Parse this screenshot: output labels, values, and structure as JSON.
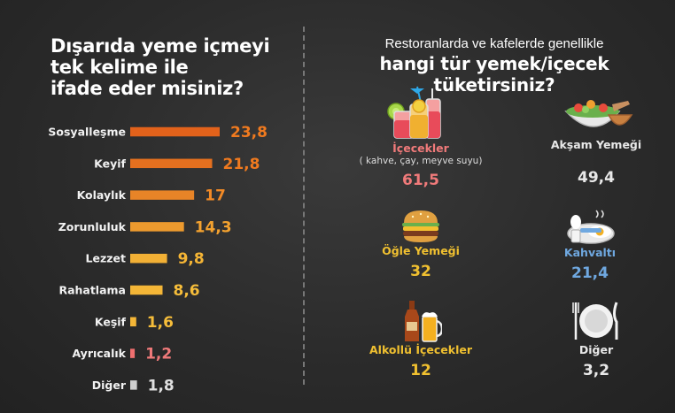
{
  "left": {
    "title_lines": [
      "Dışarıda yeme içmeyi",
      "tek kelime ile",
      "ifade eder misiniz?"
    ]
  },
  "right": {
    "subtitle": "Restoranlarda ve kafelerde genellikle",
    "title": "hangi tür yemek/içecek tüketirsiniz?",
    "items": [
      {
        "label": "İçecekler",
        "note": "( kahve, çay, meyve suyu)",
        "value": "61,5",
        "color": "#f07a7a",
        "icon": "drinks-icon"
      },
      {
        "label": "Akşam Yemeği",
        "note": "",
        "value": "49,4",
        "color": "#e0e0e0",
        "icon": "dinner-icon"
      },
      {
        "label": "Öğle Yemeği",
        "note": "",
        "value": "32",
        "color": "#f0c030",
        "icon": "burger-icon"
      },
      {
        "label": "Kahvaltı",
        "note": "",
        "value": "21,4",
        "color": "#6fa8e0",
        "icon": "breakfast-icon"
      },
      {
        "label": "Alkollü İçecekler",
        "note": "",
        "value": "12",
        "color": "#f0c030",
        "icon": "beer-icon"
      },
      {
        "label": "Diğer",
        "note": "",
        "value": "3,2",
        "color": "#e0e0e0",
        "icon": "plate-icon"
      }
    ]
  },
  "chart_data": {
    "type": "bar",
    "orientation": "horizontal",
    "title": "Dışarıda yeme içmeyi tek kelime ile ifade eder misiniz?",
    "categories": [
      "Sosyalleşme",
      "Keyif",
      "Kolaylık",
      "Zorunluluk",
      "Lezzet",
      "Rahatlama",
      "Keşif",
      "Ayrıcalık",
      "Diğer"
    ],
    "values": [
      23.8,
      21.8,
      17,
      14.3,
      9.8,
      8.6,
      1.6,
      1.2,
      1.8
    ],
    "value_labels": [
      "23,8",
      "21,8",
      "17",
      "14,3",
      "9,8",
      "8,6",
      "1,6",
      "1,2",
      "1,8"
    ],
    "colors": [
      "#e2621b",
      "#e5701f",
      "#e88427",
      "#ec9a2e",
      "#f2b035",
      "#f4b637",
      "#f4b637",
      "#ef6f6f",
      "#cfcfcf"
    ],
    "value_colors": [
      "#f07a1f",
      "#f07a1f",
      "#f28a26",
      "#f4a22f",
      "#f5b535",
      "#f6bd3a",
      "#f6bd3a",
      "#f07a7a",
      "#e0e0e0"
    ],
    "xlim": [
      0,
      23.8
    ],
    "grid": false,
    "legend": "none"
  }
}
